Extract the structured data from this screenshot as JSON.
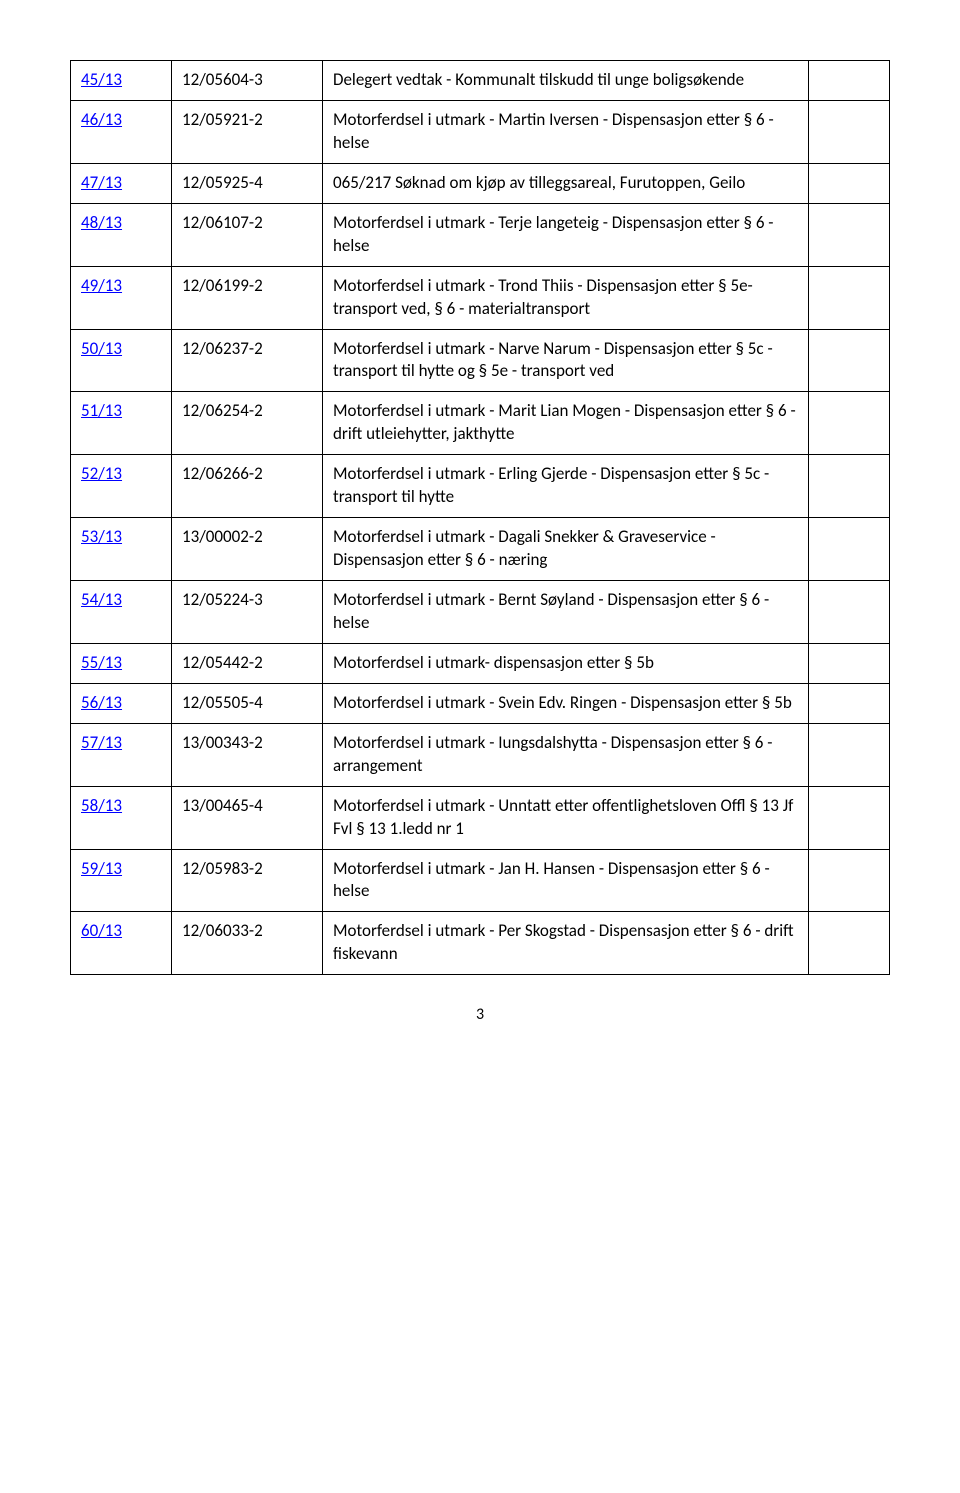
{
  "page_number": "3",
  "rows": [
    {
      "saknr": "45/13",
      "ref": "12/05604-3",
      "desc": "Delegert vedtak - Kommunalt tilskudd til unge boligsøkende"
    },
    {
      "saknr": "46/13",
      "ref": "12/05921-2",
      "desc": "Motorferdsel i utmark - Martin Iversen - Dispensasjon etter § 6 - helse"
    },
    {
      "saknr": "47/13",
      "ref": "12/05925-4",
      "desc": "065/217 Søknad om kjøp av tilleggsareal, Furutoppen, Geilo"
    },
    {
      "saknr": "48/13",
      "ref": "12/06107-2",
      "desc": "Motorferdsel i utmark - Terje langeteig - Dispensasjon etter § 6 - helse"
    },
    {
      "saknr": "49/13",
      "ref": "12/06199-2",
      "desc": "Motorferdsel i utmark - Trond Thiis - Dispensasjon etter § 5e- transport ved, § 6 - materialtransport"
    },
    {
      "saknr": "50/13",
      "ref": "12/06237-2",
      "desc": "Motorferdsel i utmark - Narve Narum - Dispensasjon etter § 5c - transport til hytte og § 5e - transport ved"
    },
    {
      "saknr": "51/13",
      "ref": "12/06254-2",
      "desc": "Motorferdsel i utmark - Marit Lian Mogen - Dispensasjon etter § 6 - drift utleiehytter, jakthytte"
    },
    {
      "saknr": "52/13",
      "ref": "12/06266-2",
      "desc": "Motorferdsel i utmark - Erling Gjerde - Dispensasjon etter § 5c -transport til hytte"
    },
    {
      "saknr": "53/13",
      "ref": "13/00002-2",
      "desc": "Motorferdsel i utmark - Dagali Snekker & Graveservice - Dispensasjon etter § 6 - næring"
    },
    {
      "saknr": "54/13",
      "ref": "12/05224-3",
      "desc": "Motorferdsel i utmark - Bernt Søyland - Dispensasjon etter § 6 - helse"
    },
    {
      "saknr": "55/13",
      "ref": "12/05442-2",
      "desc": "Motorferdsel i utmark- dispensasjon etter § 5b"
    },
    {
      "saknr": "56/13",
      "ref": "12/05505-4",
      "desc": "Motorferdsel i utmark - Svein Edv. Ringen - Dispensasjon etter § 5b"
    },
    {
      "saknr": "57/13",
      "ref": "13/00343-2",
      "desc": "Motorferdsel i utmark - Iungsdalshytta - Dispensasjon etter § 6 - arrangement"
    },
    {
      "saknr": "58/13",
      "ref": "13/00465-4",
      "desc": "Motorferdsel i utmark  - Unntatt etter offentlighetsloven Offl § 13 Jf Fvl § 13 1.ledd nr 1"
    },
    {
      "saknr": "59/13",
      "ref": "12/05983-2",
      "desc": "Motorferdsel i utmark - Jan H. Hansen - Dispensasjon etter § 6 - helse"
    },
    {
      "saknr": "60/13",
      "ref": "12/06033-2",
      "desc": "Motorferdsel i utmark - Per Skogstad - Dispensasjon etter § 6 - drift fiskevann"
    }
  ]
}
